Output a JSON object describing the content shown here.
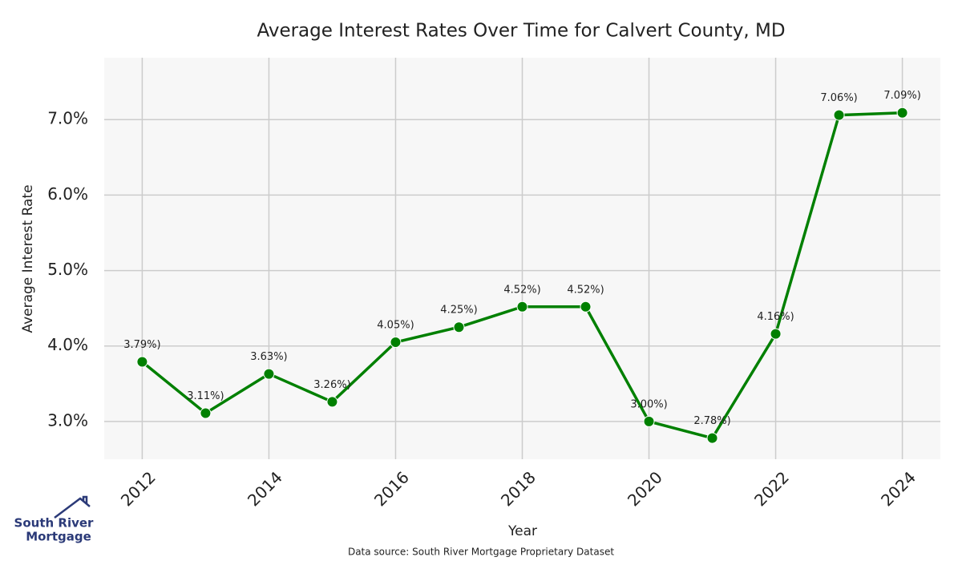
{
  "chart_data": {
    "type": "line",
    "title": "Average Interest Rates Over Time for Calvert County, MD",
    "x_label": "Year",
    "y_label": "Average Interest Rate",
    "x": [
      2012,
      2013,
      2014,
      2015,
      2016,
      2017,
      2018,
      2019,
      2020,
      2021,
      2022,
      2023,
      2024
    ],
    "series": [
      {
        "color": "#008000",
        "values": [
          3.79,
          3.11,
          3.63,
          3.26,
          4.05,
          4.25,
          4.52,
          4.52,
          3.0,
          2.78,
          4.16,
          7.06,
          7.09
        ],
        "value_labels": [
          "3.79%)",
          "3.11%)",
          "3.63%)",
          "3.26%)",
          "4.05%)",
          "4.25%)",
          "4.52%)",
          "4.52%)",
          "3.00%)",
          "2.78%)",
          "4.16%)",
          "7.06%)",
          "7.09%)"
        ]
      }
    ],
    "xlim": [
      2011.4,
      2024.6
    ],
    "xticks": [
      2012,
      2014,
      2016,
      2018,
      2020,
      2022,
      2024
    ],
    "ylim": [
      2.5,
      7.82
    ],
    "yticks": [
      {
        "value": 3,
        "label": "3.0%"
      },
      {
        "value": 4,
        "label": "4.0%"
      },
      {
        "value": 5,
        "label": "5.0%"
      },
      {
        "value": 6,
        "label": "6.0%"
      },
      {
        "value": 7,
        "label": "7.0%"
      }
    ],
    "grid": true
  },
  "source": "Data source: South River Mortgage Proprietary Dataset",
  "logo": {
    "line1": "South River",
    "line2": "Mortgage"
  }
}
